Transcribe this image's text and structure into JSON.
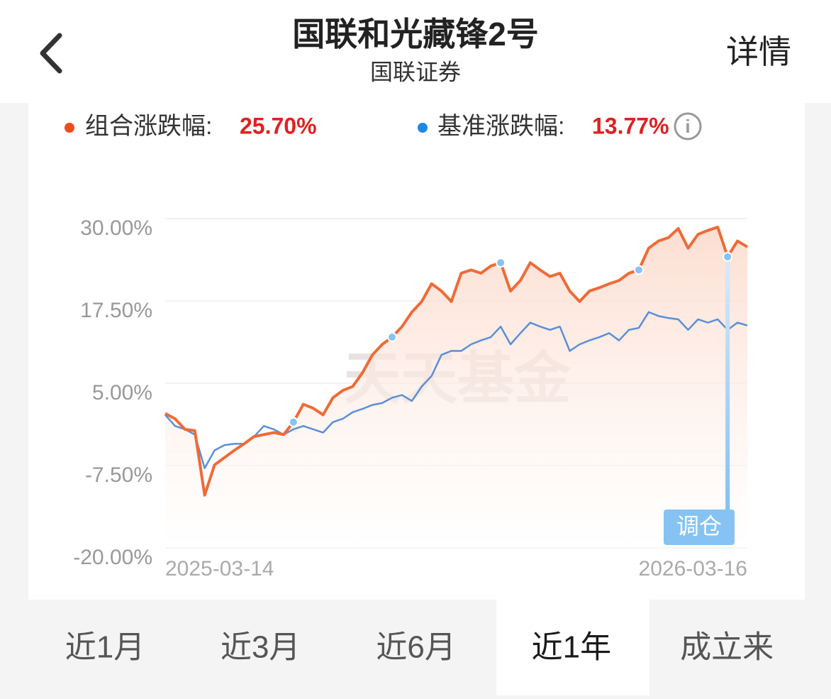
{
  "header": {
    "title": "国联和光藏锋2号",
    "subtitle": "国联证券",
    "action": "详情"
  },
  "returns": [
    "25.70%",
    "13.77%"
  ],
  "chart_data": {
    "type": "line",
    "categories": [
      "2025-03-14",
      null,
      null,
      null,
      null,
      null,
      null,
      null,
      null,
      null,
      null,
      null,
      null,
      null,
      null,
      null,
      null,
      null,
      null,
      null,
      null,
      null,
      null,
      null,
      null,
      null,
      null,
      null,
      null,
      null,
      null,
      null,
      null,
      null,
      null,
      null,
      null,
      null,
      null,
      null,
      null,
      null,
      null,
      null,
      null,
      null,
      null,
      null,
      null,
      null,
      null,
      null,
      null,
      null,
      null,
      null,
      null,
      null,
      null,
      "2026-03-16"
    ],
    "series": [
      {
        "name": "组合涨跌幅:",
        "color": "#f06a35",
        "values": [
          0.4,
          -0.4,
          -2,
          -2.2,
          -12,
          -7.4,
          -6.3,
          -5.2,
          -4.2,
          -3.1,
          -2.8,
          -2.5,
          -2.8,
          -0.9,
          1.8,
          1.2,
          0.2,
          2.8,
          3.9,
          4.5,
          6.6,
          9.3,
          10.9,
          12,
          13.6,
          15.8,
          17.4,
          20.1,
          19,
          17.4,
          21.7,
          22.2,
          21.7,
          22.8,
          23.3,
          19,
          20.6,
          23.3,
          22.2,
          21.2,
          21.7,
          19,
          17.4,
          19,
          19.5,
          20.1,
          20.6,
          21.7,
          22.2,
          25.5,
          26.6,
          27.1,
          28.5,
          25.5,
          27.6,
          28.2,
          28.7,
          24.2,
          26.6,
          25.7
        ]
      },
      {
        "name": "基准涨跌幅:",
        "color": "#5b8fd8",
        "values": [
          0.2,
          -1.5,
          -2,
          -2.8,
          -7.9,
          -5.2,
          -4.4,
          -4.2,
          -4.2,
          -3.1,
          -1.5,
          -2,
          -2.8,
          -2,
          -1.5,
          -2,
          -2.5,
          -0.9,
          -0.4,
          0.6,
          1.1,
          1.7,
          2,
          2.8,
          3.2,
          2.3,
          4.5,
          6.1,
          9.3,
          9.9,
          9.9,
          10.9,
          11.5,
          12,
          13.6,
          10.9,
          12.6,
          14.2,
          13.6,
          13.1,
          13.6,
          9.9,
          10.9,
          11.5,
          12,
          12.6,
          11.5,
          13.1,
          13.4,
          15.8,
          15.2,
          14.9,
          14.7,
          13.1,
          14.7,
          14.2,
          14.7,
          13.1,
          14.2,
          13.77
        ]
      }
    ],
    "rebalance_points": [
      13,
      23,
      34,
      48,
      57
    ],
    "rebalance_label": "调仓",
    "watermark": "天天基金",
    "ylim": [
      -20,
      30
    ],
    "yticks": [
      {
        "value": 30,
        "label": "30.00%"
      },
      {
        "value": 17.5,
        "label": "17.50%"
      },
      {
        "value": 5,
        "label": "5.00%"
      },
      {
        "value": -7.5,
        "label": "-7.50%"
      },
      {
        "value": -20,
        "label": "-20.00%"
      }
    ],
    "grid": true
  },
  "tabs": {
    "items": [
      "近1月",
      "近3月",
      "近6月",
      "近1年",
      "成立来"
    ],
    "selected": 3
  }
}
